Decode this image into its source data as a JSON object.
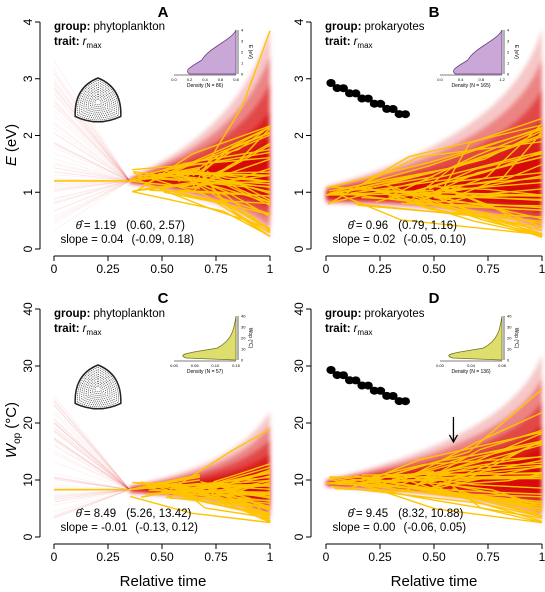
{
  "figure": {
    "x_axis_label": "Relative time",
    "y_axis_label_top": {
      "main": "E",
      "unit": "(eV)"
    },
    "y_axis_label_bottom": {
      "main": "W",
      "sub": "op",
      "unit": "(°C)"
    }
  },
  "chart_data": [
    {
      "type": "line",
      "panel": "A",
      "group_label": "group:",
      "group": "phytoplankton",
      "trait_label": "trait:",
      "trait": "r",
      "trait_sub": "max",
      "xlim": [
        0,
        1
      ],
      "ylim": [
        0,
        4
      ],
      "x_ticks": [
        "0",
        "0.25",
        "0.50",
        "0.75",
        "1"
      ],
      "y_ticks": [
        "0",
        "1",
        "2",
        "3",
        "4"
      ],
      "root_value": 1.2,
      "split_x": 0.35,
      "theta_symbol": "θ̂",
      "theta_text": "= 1.19",
      "theta_ci": "(0.60, 2.57)",
      "slope_text": "slope = 0.04",
      "slope_ci": "(-0.09, 0.18)",
      "inset": {
        "xlabel": "Density (N = 86)",
        "ylabel": "E (eV)",
        "x_ticks": [
          "0.0",
          "0.2",
          "0.4",
          "0.6",
          "0.8"
        ],
        "y_ticks": [
          "0",
          "1",
          "2",
          "3",
          "4"
        ],
        "fill": "#c9a8d8",
        "stroke": "#6b3c80"
      },
      "has_cell_icon": true,
      "has_tree_icon": false,
      "has_arrow": false
    },
    {
      "type": "line",
      "panel": "B",
      "group_label": "group:",
      "group": "prokaryotes",
      "trait_label": "trait:",
      "trait": "r",
      "trait_sub": "max",
      "xlim": [
        0,
        1
      ],
      "ylim": [
        0,
        4
      ],
      "x_ticks": [
        "0",
        "0.25",
        "0.50",
        "0.75",
        "1"
      ],
      "y_ticks": [
        "0",
        "1",
        "2",
        "3",
        "4"
      ],
      "root_value": 0.95,
      "split_x": 0.0,
      "theta_symbol": "θ̂",
      "theta_text": "= 0.96",
      "theta_ci": "(0.79, 1.16)",
      "slope_text": "slope = 0.02",
      "slope_ci": "(-0.05, 0.10)",
      "inset": {
        "xlabel": "Density (N = 165)",
        "ylabel": "E (eV)",
        "x_ticks": [
          "0.0",
          "0.4",
          "0.8",
          "1.2"
        ],
        "y_ticks": [
          "0",
          "1",
          "2",
          "3",
          "4"
        ],
        "fill": "#c9a8d8",
        "stroke": "#6b3c80"
      },
      "has_cell_icon": false,
      "has_tree_icon": true,
      "has_arrow": false
    },
    {
      "type": "line",
      "panel": "C",
      "group_label": "group:",
      "group": "phytoplankton",
      "trait_label": "trait:",
      "trait": "r",
      "trait_sub": "max",
      "xlim": [
        0,
        1
      ],
      "ylim": [
        0,
        40
      ],
      "x_ticks": [
        "0",
        "0.25",
        "0.50",
        "0.75",
        "1"
      ],
      "y_ticks": [
        "0",
        "10",
        "20",
        "30",
        "40"
      ],
      "root_value": 8.3,
      "split_x": 0.35,
      "theta_symbol": "θ̂",
      "theta_text": "= 8.49",
      "theta_ci": "(5.26, 13.42)",
      "slope_text": "slope = -0.01",
      "slope_ci": "(-0.13, 0.12)",
      "inset": {
        "xlabel": "Density (N = 57)",
        "ylabel": "Wop (°C)",
        "x_ticks": [
          "0.00",
          "0.05",
          "0.10",
          "0.15"
        ],
        "y_ticks": [
          "0",
          "10",
          "20",
          "30",
          "40"
        ],
        "fill": "#dede6e",
        "stroke": "#6f6f1c"
      },
      "has_cell_icon": true,
      "has_tree_icon": false,
      "has_arrow": false
    },
    {
      "type": "line",
      "panel": "D",
      "group_label": "group:",
      "group": "prokaryotes",
      "trait_label": "trait:",
      "trait": "r",
      "trait_sub": "max",
      "xlim": [
        0,
        1
      ],
      "ylim": [
        0,
        40
      ],
      "x_ticks": [
        "0",
        "0.25",
        "0.50",
        "0.75",
        "1"
      ],
      "y_ticks": [
        "0",
        "10",
        "20",
        "30",
        "40"
      ],
      "root_value": 9.4,
      "split_x": 0.0,
      "theta_symbol": "θ̂",
      "theta_text": "= 9.45",
      "theta_ci": "(8.32, 10.88)",
      "slope_text": "slope = 0.00",
      "slope_ci": "(-0.06, 0.05)",
      "inset": {
        "xlabel": "Density (N = 136)",
        "ylabel": "Wop (°C)",
        "x_ticks": [
          "0.00",
          "0.04",
          "0.08"
        ],
        "y_ticks": [
          "0",
          "10",
          "20",
          "30",
          "40"
        ],
        "fill": "#dede6e",
        "stroke": "#6f6f1c"
      },
      "has_cell_icon": false,
      "has_tree_icon": true,
      "has_arrow": true,
      "arrow_x": 0.59,
      "arrow_y": 16.5
    }
  ],
  "colors": {
    "envelope": "#d50000",
    "branches": "#ffc400"
  }
}
